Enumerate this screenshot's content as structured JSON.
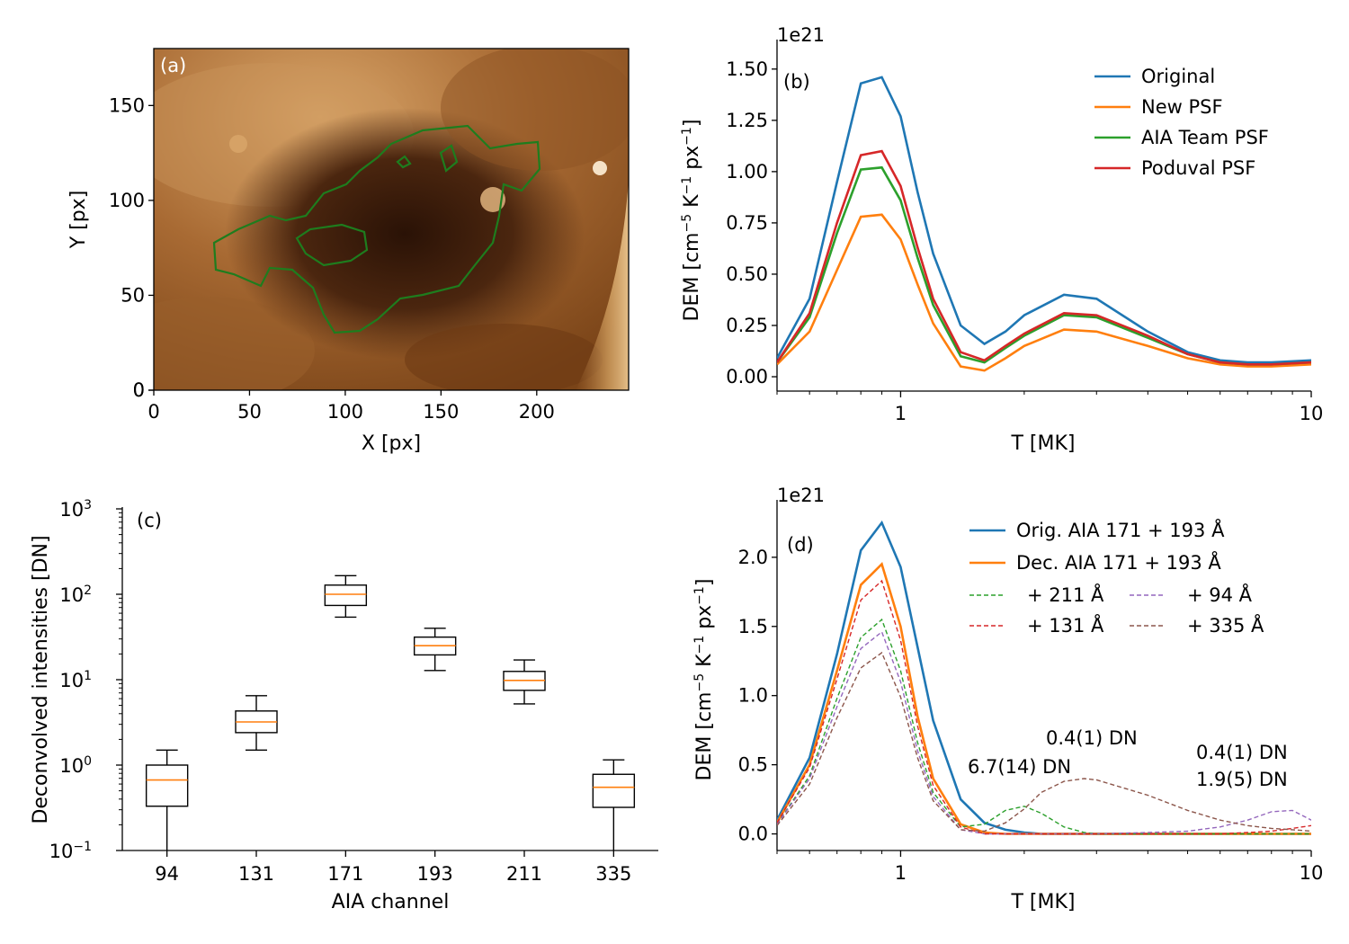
{
  "colors": {
    "original": "#1f77b4",
    "new_psf": "#ff7f0e",
    "aia_team_psf": "#2ca02c",
    "poduval_psf": "#d62728",
    "purple": "#9467bd",
    "brown": "#8c564b",
    "contour": "#1e7d1e"
  },
  "chart_data": [
    {
      "id": "a",
      "type": "image",
      "panel_label": "(a)",
      "xlabel": "X [px]",
      "ylabel": "Y [px]",
      "xlim": [
        0,
        248
      ],
      "ylim": [
        0,
        180
      ],
      "xticks": [
        0,
        50,
        100,
        150,
        200
      ],
      "yticks": [
        0,
        50,
        100,
        150
      ],
      "colormap": "sdoaia193",
      "contour_color": "green"
    },
    {
      "id": "b",
      "type": "line",
      "panel_label": "(b)",
      "offset_text": "1e21",
      "xlabel": "T [MK]",
      "ylabel": "DEM [cm$^{-5}$ K$^{-1}$ px$^{-1}$]",
      "x_scale": "log",
      "xlim": [
        0.5,
        10
      ],
      "ylim": [
        -0.07,
        1.6
      ],
      "xticks": [
        1,
        10
      ],
      "yticks": [
        "0.00",
        "0.25",
        "0.50",
        "0.75",
        "1.00",
        "1.25",
        "1.50"
      ],
      "legend_position": "upper right",
      "x": [
        0.5,
        0.6,
        0.7,
        0.8,
        0.9,
        1.0,
        1.1,
        1.2,
        1.4,
        1.6,
        1.8,
        2.0,
        2.5,
        3.0,
        4.0,
        5.0,
        6.0,
        7.0,
        8.0,
        10.0
      ],
      "series": [
        {
          "name": "Original",
          "color": "#1f77b4",
          "values": [
            0.09,
            0.38,
            0.95,
            1.43,
            1.46,
            1.27,
            0.9,
            0.6,
            0.25,
            0.16,
            0.22,
            0.3,
            0.4,
            0.38,
            0.22,
            0.12,
            0.08,
            0.07,
            0.07,
            0.08
          ]
        },
        {
          "name": "New PSF",
          "color": "#ff7f0e",
          "values": [
            0.06,
            0.22,
            0.52,
            0.78,
            0.79,
            0.67,
            0.45,
            0.26,
            0.05,
            0.03,
            0.09,
            0.15,
            0.23,
            0.22,
            0.15,
            0.09,
            0.06,
            0.05,
            0.05,
            0.06
          ]
        },
        {
          "name": "AIA Team PSF",
          "color": "#2ca02c",
          "values": [
            0.07,
            0.29,
            0.7,
            1.01,
            1.02,
            0.86,
            0.58,
            0.35,
            0.1,
            0.07,
            0.14,
            0.2,
            0.3,
            0.29,
            0.19,
            0.11,
            0.07,
            0.06,
            0.06,
            0.07
          ]
        },
        {
          "name": "Poduval PSF",
          "color": "#d62728",
          "values": [
            0.07,
            0.31,
            0.75,
            1.08,
            1.1,
            0.93,
            0.63,
            0.38,
            0.12,
            0.08,
            0.15,
            0.21,
            0.31,
            0.3,
            0.2,
            0.11,
            0.07,
            0.06,
            0.06,
            0.07
          ]
        }
      ]
    },
    {
      "id": "c",
      "type": "box",
      "panel_label": "(c)",
      "xlabel": "AIA channel",
      "ylabel": "Deconvolved intensities [DN]",
      "y_scale": "log",
      "ylim": [
        0.1,
        1000
      ],
      "ytick_labels": [
        "10$^{-1}$",
        "10$^{0}$",
        "10$^{1}$",
        "10$^{2}$",
        "10$^{3}$"
      ],
      "categories": [
        "94",
        "131",
        "171",
        "193",
        "211",
        "335"
      ],
      "boxes": [
        {
          "whisker_low": 0.1,
          "q1": 0.33,
          "median": 0.67,
          "q3": 1.0,
          "whisker_high": 1.5
        },
        {
          "whisker_low": 1.5,
          "q1": 2.4,
          "median": 3.2,
          "q3": 4.3,
          "whisker_high": 6.5
        },
        {
          "whisker_low": 54,
          "q1": 74,
          "median": 100,
          "q3": 128,
          "whisker_high": 165
        },
        {
          "whisker_low": 12.8,
          "q1": 19.5,
          "median": 25,
          "q3": 31.5,
          "whisker_high": 40
        },
        {
          "whisker_low": 5.2,
          "q1": 7.5,
          "median": 9.8,
          "q3": 12.5,
          "whisker_high": 17
        },
        {
          "whisker_low": 0.1,
          "q1": 0.32,
          "median": 0.55,
          "q3": 0.78,
          "whisker_high": 1.15
        }
      ]
    },
    {
      "id": "d",
      "type": "line",
      "panel_label": "(d)",
      "offset_text": "1e21",
      "xlabel": "T [MK]",
      "ylabel": "DEM [cm$^{-5}$ K$^{-1}$ px$^{-1}$]",
      "x_scale": "log",
      "xlim": [
        0.5,
        10
      ],
      "ylim": [
        -0.12,
        2.35
      ],
      "xticks": [
        1,
        10
      ],
      "yticks": [
        "0.0",
        "0.5",
        "1.0",
        "1.5",
        "2.0"
      ],
      "legend_position": "upper right",
      "x": [
        0.5,
        0.6,
        0.7,
        0.8,
        0.9,
        1.0,
        1.1,
        1.2,
        1.4,
        1.6,
        1.8,
        2.0,
        2.2,
        2.5,
        2.8,
        3.0,
        4.0,
        5.0,
        6.0,
        7.0,
        8.0,
        9.0,
        10.0
      ],
      "series": [
        {
          "name": "Orig. AIA 171 + 193 Å",
          "color": "#1f77b4",
          "style": "solid",
          "values": [
            0.1,
            0.55,
            1.3,
            2.05,
            2.25,
            1.93,
            1.35,
            0.82,
            0.25,
            0.08,
            0.03,
            0.01,
            0.0,
            0.0,
            0.0,
            0.0,
            0.0,
            0.0,
            0.0,
            0.0,
            0.0,
            0.0,
            0.0
          ]
        },
        {
          "name": "Dec. AIA 171 + 193 Å",
          "color": "#ff7f0e",
          "style": "solid",
          "values": [
            0.08,
            0.5,
            1.18,
            1.8,
            1.95,
            1.5,
            0.85,
            0.4,
            0.07,
            0.01,
            0.0,
            0.0,
            0.0,
            0.0,
            0.0,
            0.0,
            0.0,
            0.0,
            0.0,
            0.0,
            0.0,
            0.0,
            0.0
          ]
        },
        {
          "name": "+ 211 Å",
          "color": "#2ca02c",
          "style": "dashed",
          "values": [
            0.07,
            0.42,
            0.98,
            1.42,
            1.55,
            1.18,
            0.66,
            0.3,
            0.05,
            0.07,
            0.17,
            0.2,
            0.15,
            0.05,
            0.01,
            0.0,
            0.0,
            0.0,
            0.0,
            0.0,
            0.0,
            0.0,
            0.0
          ]
        },
        {
          "name": "+ 94 Å",
          "color": "#9467bd",
          "style": "dashed",
          "values": [
            0.07,
            0.4,
            0.92,
            1.34,
            1.46,
            1.1,
            0.6,
            0.27,
            0.03,
            0.0,
            0.0,
            0.0,
            0.0,
            0.0,
            0.0,
            0.0,
            0.01,
            0.02,
            0.05,
            0.1,
            0.16,
            0.17,
            0.1
          ]
        },
        {
          "name": "+ 131 Å",
          "color": "#d62728",
          "style": "dashed",
          "values": [
            0.08,
            0.48,
            1.12,
            1.69,
            1.83,
            1.4,
            0.78,
            0.35,
            0.05,
            0.0,
            0.0,
            0.0,
            0.0,
            0.0,
            0.0,
            0.0,
            0.0,
            0.0,
            0.0,
            0.01,
            0.02,
            0.04,
            0.06
          ]
        },
        {
          "name": "+ 335 Å",
          "color": "#8c564b",
          "style": "dashed",
          "values": [
            0.06,
            0.36,
            0.84,
            1.2,
            1.31,
            0.99,
            0.55,
            0.24,
            0.03,
            0.02,
            0.08,
            0.18,
            0.3,
            0.38,
            0.4,
            0.39,
            0.28,
            0.17,
            0.1,
            0.06,
            0.04,
            0.03,
            0.02
          ]
        }
      ],
      "annotations": [
        {
          "text": "6.7(14) DN",
          "color": "#2ca02c"
        },
        {
          "text": "0.4(1) DN",
          "color": "#8c564b"
        },
        {
          "text": "0.4(1) DN",
          "color": "#9467bd"
        },
        {
          "text": "1.9(5) DN",
          "color": "#d62728"
        }
      ]
    }
  ]
}
